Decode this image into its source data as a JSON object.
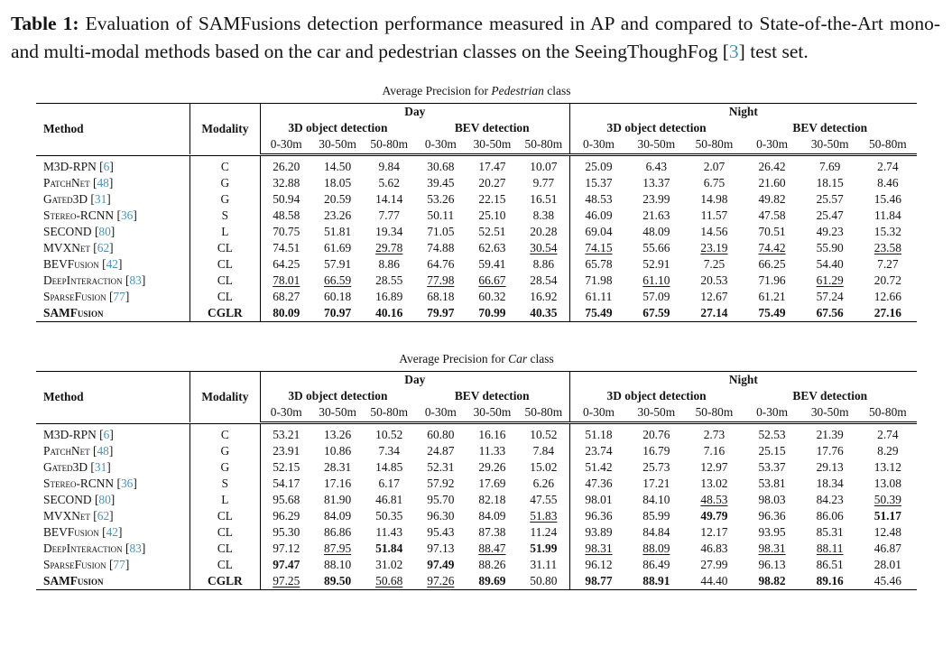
{
  "colors": {
    "citation": "#4a93b5",
    "text": "#141414",
    "rule": "#000000"
  },
  "caption": {
    "label": "Table 1:",
    "text": " Evaluation of SAMFusions detection performance measured in AP and compared to State-of-the-Art mono- and multi-modal methods based on the car and pedestrian classes on the SeeingThoughFog ",
    "cite": "[3]",
    "text_after": " test set."
  },
  "tables": [
    {
      "title_prefix": "Average Precision for ",
      "title_class": "Pedestrian",
      "title_suffix": " class",
      "method_header": "Method",
      "modality_header": "Modality",
      "groups": [
        "Day",
        "Night"
      ],
      "subgroups": [
        "3D object detection",
        "BEV detection"
      ],
      "ranges": [
        "0-30m",
        "30-50m",
        "50-80m"
      ],
      "rows": [
        {
          "method": "M3D-RPN",
          "cite": "[6]",
          "modality": "C",
          "values": [
            "26.20",
            "14.50",
            "9.84",
            "30.68",
            "17.47",
            "10.07",
            "25.09",
            "6.43",
            "2.07",
            "26.42",
            "7.69",
            "2.74"
          ],
          "styles": [
            "",
            "",
            "",
            "",
            "",
            "",
            "",
            "",
            "",
            "",
            "",
            ""
          ]
        },
        {
          "method": "PatchNet",
          "cite": "[48]",
          "modality": "G",
          "values": [
            "32.88",
            "18.05",
            "5.62",
            "39.45",
            "20.27",
            "9.77",
            "15.37",
            "13.37",
            "6.75",
            "21.60",
            "18.15",
            "8.46"
          ],
          "styles": [
            "",
            "",
            "",
            "",
            "",
            "",
            "",
            "",
            "",
            "",
            "",
            ""
          ]
        },
        {
          "method": "Gated3D",
          "cite": "[31]",
          "modality": "G",
          "values": [
            "50.94",
            "20.59",
            "14.14",
            "53.26",
            "22.15",
            "16.51",
            "48.53",
            "23.99",
            "14.98",
            "49.82",
            "25.57",
            "15.46"
          ],
          "styles": [
            "",
            "",
            "",
            "",
            "",
            "",
            "",
            "",
            "",
            "",
            "",
            ""
          ]
        },
        {
          "method": "Stereo-RCNN",
          "cite": "[36]",
          "modality": "S",
          "values": [
            "48.58",
            "23.26",
            "7.77",
            "50.11",
            "25.10",
            "8.38",
            "46.09",
            "21.63",
            "11.57",
            "47.58",
            "25.47",
            "11.84"
          ],
          "styles": [
            "",
            "",
            "",
            "",
            "",
            "",
            "",
            "",
            "",
            "",
            "",
            ""
          ]
        },
        {
          "method": "SECOND",
          "cite": "[80]",
          "modality": "L",
          "values": [
            "70.75",
            "51.81",
            "19.34",
            "71.05",
            "52.51",
            "20.28",
            "69.04",
            "48.09",
            "14.56",
            "70.51",
            "49.23",
            "15.32"
          ],
          "styles": [
            "",
            "",
            "",
            "",
            "",
            "",
            "",
            "",
            "",
            "",
            "",
            ""
          ]
        },
        {
          "method": "MVXNet",
          "cite": "[62]",
          "modality": "CL",
          "values": [
            "74.51",
            "61.69",
            "29.78",
            "74.88",
            "62.63",
            "30.54",
            "74.15",
            "55.66",
            "23.19",
            "74.42",
            "55.90",
            "23.58"
          ],
          "styles": [
            "",
            "",
            "u",
            "",
            "",
            "u",
            "u",
            "",
            "u",
            "u",
            "",
            "u"
          ]
        },
        {
          "method": "BEVFusion",
          "cite": "[42]",
          "modality": "CL",
          "values": [
            "64.25",
            "57.91",
            "8.86",
            "64.76",
            "59.41",
            "8.86",
            "65.78",
            "52.91",
            "7.25",
            "66.25",
            "54.40",
            "7.27"
          ],
          "styles": [
            "",
            "",
            "",
            "",
            "",
            "",
            "",
            "",
            "",
            "",
            "",
            ""
          ]
        },
        {
          "method": "DeepInteraction",
          "cite": "[83]",
          "modality": "CL",
          "values": [
            "78.01",
            "66.59",
            "28.55",
            "77.98",
            "66.67",
            "28.54",
            "71.98",
            "61.10",
            "20.53",
            "71.96",
            "61.29",
            "20.72"
          ],
          "styles": [
            "u",
            "u",
            "",
            "u",
            "u",
            "",
            "",
            "u",
            "",
            "",
            "u",
            ""
          ]
        },
        {
          "method": "SparseFusion",
          "cite": "[77]",
          "modality": "CL",
          "values": [
            "68.27",
            "60.18",
            "16.89",
            "68.18",
            "60.32",
            "16.92",
            "61.11",
            "57.09",
            "12.67",
            "61.21",
            "57.24",
            "12.66"
          ],
          "styles": [
            "",
            "",
            "",
            "",
            "",
            "",
            "",
            "",
            "",
            "",
            "",
            ""
          ]
        },
        {
          "method": "SAMFusion",
          "cite": "",
          "modality": "CGLR",
          "bold": true,
          "values": [
            "80.09",
            "70.97",
            "40.16",
            "79.97",
            "70.99",
            "40.35",
            "75.49",
            "67.59",
            "27.14",
            "75.49",
            "67.56",
            "27.16"
          ],
          "styles": [
            "b",
            "b",
            "b",
            "b",
            "b",
            "b",
            "b",
            "b",
            "b",
            "b",
            "b",
            "b"
          ]
        }
      ]
    },
    {
      "title_prefix": "Average Precision for ",
      "title_class": "Car",
      "title_suffix": " class",
      "method_header": "Method",
      "modality_header": "Modality",
      "groups": [
        "Day",
        "Night"
      ],
      "subgroups": [
        "3D object detection",
        "BEV detection"
      ],
      "ranges": [
        "0-30m",
        "30-50m",
        "50-80m"
      ],
      "rows": [
        {
          "method": "M3D-RPN",
          "cite": "[6]",
          "modality": "C",
          "values": [
            "53.21",
            "13.26",
            "10.52",
            "60.80",
            "16.16",
            "10.52",
            "51.18",
            "20.76",
            "2.73",
            "52.53",
            "21.39",
            "2.74"
          ],
          "styles": [
            "",
            "",
            "",
            "",
            "",
            "",
            "",
            "",
            "",
            "",
            "",
            ""
          ]
        },
        {
          "method": "PatchNet",
          "cite": "[48]",
          "modality": "G",
          "values": [
            "23.91",
            "10.86",
            "7.34",
            "24.87",
            "11.33",
            "7.84",
            "23.74",
            "16.79",
            "7.16",
            "25.15",
            "17.76",
            "8.29"
          ],
          "styles": [
            "",
            "",
            "",
            "",
            "",
            "",
            "",
            "",
            "",
            "",
            "",
            ""
          ]
        },
        {
          "method": "Gated3D",
          "cite": "[31]",
          "modality": "G",
          "values": [
            "52.15",
            "28.31",
            "14.85",
            "52.31",
            "29.26",
            "15.02",
            "51.42",
            "25.73",
            "12.97",
            "53.37",
            "29.13",
            "13.12"
          ],
          "styles": [
            "",
            "",
            "",
            "",
            "",
            "",
            "",
            "",
            "",
            "",
            "",
            ""
          ]
        },
        {
          "method": "Stereo-RCNN",
          "cite": "[36]",
          "modality": "S",
          "values": [
            "54.17",
            "17.16",
            "6.17",
            "57.92",
            "17.69",
            "6.26",
            "47.36",
            "17.21",
            "13.02",
            "53.81",
            "18.34",
            "13.08"
          ],
          "styles": [
            "",
            "",
            "",
            "",
            "",
            "",
            "",
            "",
            "",
            "",
            "",
            ""
          ]
        },
        {
          "method": "SECOND",
          "cite": "[80]",
          "modality": "L",
          "values": [
            "95.68",
            "81.90",
            "46.81",
            "95.70",
            "82.18",
            "47.55",
            "98.01",
            "84.10",
            "48.53",
            "98.03",
            "84.23",
            "50.39"
          ],
          "styles": [
            "",
            "",
            "",
            "",
            "",
            "",
            "",
            "",
            "u",
            "",
            "",
            "u"
          ]
        },
        {
          "method": "MVXNet",
          "cite": "[62]",
          "modality": "CL",
          "values": [
            "96.29",
            "84.09",
            "50.35",
            "96.30",
            "84.09",
            "51.83",
            "96.36",
            "85.99",
            "49.79",
            "96.36",
            "86.06",
            "51.17"
          ],
          "styles": [
            "",
            "",
            "",
            "",
            "",
            "u",
            "",
            "",
            "b",
            "",
            "",
            "b"
          ]
        },
        {
          "method": "BEVFusion",
          "cite": "[42]",
          "modality": "CL",
          "values": [
            "95.30",
            "86.86",
            "11.43",
            "95.43",
            "87.38",
            "11.24",
            "93.89",
            "84.84",
            "12.17",
            "93.95",
            "85.31",
            "12.48"
          ],
          "styles": [
            "",
            "",
            "",
            "",
            "",
            "",
            "",
            "",
            "",
            "",
            "",
            ""
          ]
        },
        {
          "method": "DeepInteraction",
          "cite": "[83]",
          "modality": "CL",
          "values": [
            "97.12",
            "87.95",
            "51.84",
            "97.13",
            "88.47",
            "51.99",
            "98.31",
            "88.09",
            "46.83",
            "98.31",
            "88.11",
            "46.87"
          ],
          "styles": [
            "",
            "u",
            "b",
            "",
            "u",
            "b",
            "u",
            "u",
            "",
            "u",
            "u",
            ""
          ]
        },
        {
          "method": "SparseFusion",
          "cite": "[77]",
          "modality": "CL",
          "values": [
            "97.47",
            "88.10",
            "31.02",
            "97.49",
            "88.26",
            "31.11",
            "96.12",
            "86.49",
            "27.99",
            "96.13",
            "86.51",
            "28.01"
          ],
          "styles": [
            "b",
            "",
            "",
            "b",
            "",
            "",
            "",
            "",
            "",
            "",
            "",
            ""
          ]
        },
        {
          "method": "SAMFusion",
          "cite": "",
          "modality": "CGLR",
          "bold": true,
          "values": [
            "97.25",
            "89.50",
            "50.68",
            "97.26",
            "89.69",
            "50.80",
            "98.77",
            "88.91",
            "44.40",
            "98.82",
            "89.16",
            "45.46"
          ],
          "styles": [
            "u",
            "b",
            "u",
            "u",
            "b",
            "",
            "b",
            "b",
            "",
            "b",
            "b",
            ""
          ]
        }
      ]
    }
  ]
}
